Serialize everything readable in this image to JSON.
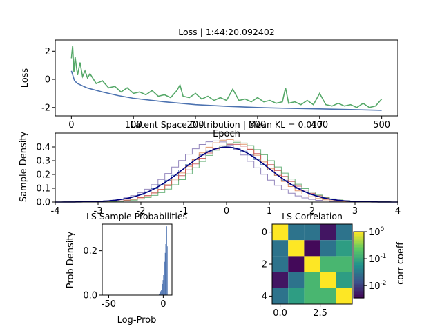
{
  "chart_data": [
    {
      "id": "loss",
      "type": "line",
      "title": "Loss | 1:44:20.092402",
      "xlabel": "Epoch",
      "ylabel": "Loss",
      "xlim": [
        -26,
        526
      ],
      "ylim": [
        -2.6,
        2.8
      ],
      "xticks": [
        0,
        100,
        200,
        300,
        400,
        500
      ],
      "yticks": [
        -2,
        0,
        2
      ],
      "grid": false,
      "series": [
        {
          "color": "#55a868",
          "x": [
            0,
            2,
            4,
            6,
            8,
            10,
            14,
            18,
            22,
            26,
            30,
            40,
            50,
            60,
            70,
            80,
            90,
            100,
            110,
            120,
            130,
            140,
            150,
            160,
            170,
            175,
            180,
            190,
            200,
            210,
            220,
            230,
            240,
            250,
            260,
            270,
            280,
            290,
            300,
            310,
            320,
            330,
            340,
            345,
            350,
            360,
            370,
            380,
            390,
            400,
            410,
            420,
            430,
            440,
            450,
            460,
            470,
            480,
            490,
            500
          ],
          "y": [
            1.5,
            2.4,
            0.5,
            1.6,
            0.9,
            0.3,
            1.2,
            0.2,
            0.6,
            0.1,
            0.4,
            -0.3,
            -0.1,
            -0.6,
            -0.5,
            -0.9,
            -0.6,
            -1.0,
            -0.9,
            -1.1,
            -0.8,
            -1.2,
            -1.1,
            -1.3,
            -0.8,
            -0.4,
            -1.2,
            -1.3,
            -1.0,
            -1.4,
            -1.2,
            -1.5,
            -1.3,
            -1.5,
            -0.7,
            -1.5,
            -1.4,
            -1.6,
            -1.3,
            -1.6,
            -1.5,
            -1.7,
            -1.6,
            -0.6,
            -1.7,
            -1.6,
            -1.8,
            -1.5,
            -1.8,
            -1.0,
            -1.8,
            -1.9,
            -1.7,
            -1.9,
            -1.8,
            -2.0,
            -1.7,
            -2.0,
            -1.9,
            -1.4
          ]
        },
        {
          "color": "#4c72b0",
          "x": [
            0,
            5,
            10,
            25,
            50,
            75,
            100,
            150,
            200,
            250,
            300,
            350,
            400,
            450,
            500
          ],
          "y": [
            0.6,
            -0.1,
            -0.3,
            -0.6,
            -0.9,
            -1.15,
            -1.35,
            -1.6,
            -1.8,
            -1.92,
            -2.0,
            -2.06,
            -2.1,
            -2.15,
            -2.2
          ]
        }
      ]
    },
    {
      "id": "latent",
      "type": "line",
      "title": "Latent Space Distribution | Mean KL = 0.017",
      "xlabel": "",
      "ylabel": "Sample Density",
      "xlim": [
        -4,
        4
      ],
      "ylim": [
        0,
        0.5
      ],
      "xticks": [
        -4,
        -3,
        -2,
        -1,
        0,
        1,
        2,
        3,
        4
      ],
      "yticks": [
        0.0,
        0.1,
        0.2,
        0.3,
        0.4
      ],
      "grid": false,
      "normal_pdf": {
        "mean": 0,
        "std": 1,
        "color": "#000080"
      },
      "histograms": [
        {
          "color": "#8172b2",
          "mean": -0.25,
          "std": 0.9
        },
        {
          "color": "#4c72b0",
          "mean": 0.0,
          "std": 1.0
        },
        {
          "color": "#dd8452",
          "mean": 0.05,
          "std": 0.88
        },
        {
          "color": "#c44e52",
          "mean": 0.15,
          "std": 0.95
        },
        {
          "color": "#55a868",
          "mean": 0.25,
          "std": 0.92
        }
      ]
    },
    {
      "id": "probs",
      "type": "bar",
      "title": "LS Sample Probabilities",
      "xlabel": "Log-Prob",
      "ylabel": "Prob Density",
      "xlim": [
        -56,
        8
      ],
      "ylim": [
        0,
        0.32
      ],
      "xticks": [
        -50,
        0
      ],
      "yticks": [
        0.0,
        0.2
      ],
      "grid": false,
      "color": "#4c72b0",
      "bins_x": [
        -4.0,
        -3.5,
        -3.0,
        -2.5,
        -2.0,
        -1.5,
        -1.0,
        -0.5,
        0.0,
        0.5,
        1.0,
        1.5,
        2.0,
        2.5,
        3.0,
        3.5
      ],
      "values": [
        0.005,
        0.008,
        0.012,
        0.018,
        0.025,
        0.035,
        0.05,
        0.068,
        0.09,
        0.12,
        0.15,
        0.19,
        0.23,
        0.27,
        0.31,
        0.22
      ]
    },
    {
      "id": "corr",
      "type": "heatmap",
      "title": "LS Correlation",
      "xlabel": "",
      "ylabel": "",
      "xticks": [
        0.0,
        2.5
      ],
      "yticks": [
        0,
        2,
        4
      ],
      "colorbar_label": "corr coeff",
      "colorbar_scale": "log",
      "colorbar_ticks": [
        "10^0",
        "10^-1",
        "10^-2"
      ],
      "colorbar_tick_values": [
        1,
        0.1,
        0.01
      ],
      "colorbar_range": [
        0.0035,
        1
      ],
      "matrix": [
        [
          1.0,
          0.03,
          0.03,
          0.005,
          0.03
        ],
        [
          0.03,
          1.0,
          0.004,
          0.03,
          0.08
        ],
        [
          0.03,
          0.004,
          1.0,
          0.15,
          0.15
        ],
        [
          0.005,
          0.03,
          0.15,
          1.0,
          0.08
        ],
        [
          0.03,
          0.08,
          0.15,
          0.15,
          1.0
        ]
      ]
    }
  ]
}
